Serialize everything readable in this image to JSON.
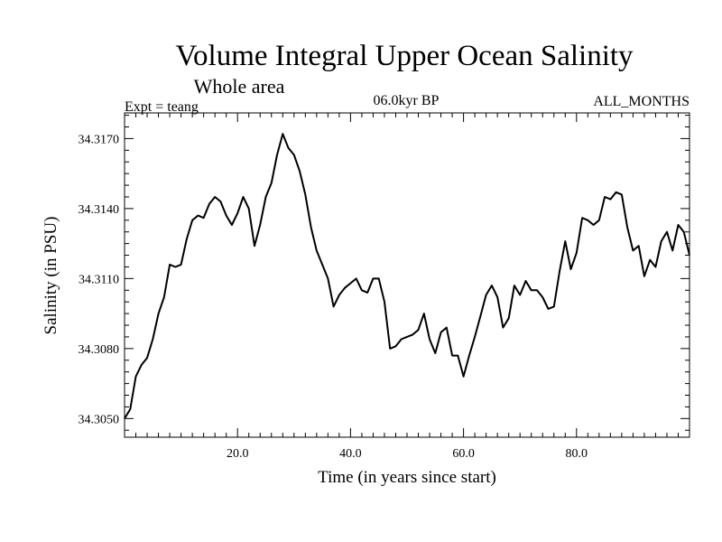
{
  "chart_data": {
    "type": "line",
    "title": "Volume Integral Upper Ocean Salinity",
    "subtitle": "Whole area",
    "header_left": "Expt = teang",
    "header_center": "06.0kyr BP",
    "header_right": "ALL_MONTHS",
    "xlabel": "Time (in years since start)",
    "ylabel": "Salinity (in PSU)",
    "xlim": [
      0,
      100
    ],
    "ylim": [
      34.3042,
      34.3181
    ],
    "xticks": [
      20,
      40,
      60,
      80
    ],
    "xtick_labels": [
      "20.0",
      "40.0",
      "60.0",
      "80.0"
    ],
    "yticks": [
      34.305,
      34.308,
      34.311,
      34.314,
      34.317
    ],
    "ytick_labels": [
      "34.3050",
      "34.3080",
      "34.3110",
      "34.3140",
      "34.3170"
    ],
    "series": [
      {
        "name": "Salinity",
        "x": [
          0,
          1,
          2,
          3,
          4,
          5,
          6,
          7,
          8,
          9,
          10,
          11,
          12,
          13,
          14,
          15,
          16,
          17,
          18,
          19,
          20,
          21,
          22,
          23,
          24,
          25,
          26,
          27,
          28,
          29,
          30,
          31,
          32,
          33,
          34,
          35,
          36,
          37,
          38,
          39,
          40,
          41,
          42,
          43,
          44,
          45,
          46,
          47,
          48,
          49,
          50,
          51,
          52,
          53,
          54,
          55,
          56,
          57,
          58,
          59,
          60,
          61,
          62,
          63,
          64,
          65,
          66,
          67,
          68,
          69,
          70,
          71,
          72,
          73,
          74,
          75,
          76,
          77,
          78,
          79,
          80,
          81,
          82,
          83,
          84,
          85,
          86,
          87,
          88,
          89,
          90,
          91,
          92,
          93,
          94,
          95,
          96,
          97,
          98,
          99,
          100
        ],
        "values": [
          34.305,
          34.3054,
          34.3068,
          34.3073,
          34.3076,
          34.3084,
          34.3095,
          34.3102,
          34.3116,
          34.3115,
          34.3116,
          34.3127,
          34.3135,
          34.3137,
          34.3136,
          34.3142,
          34.3145,
          34.3143,
          34.3137,
          34.3133,
          34.3138,
          34.3145,
          34.314,
          34.3124,
          34.3133,
          34.3145,
          34.3151,
          34.3163,
          34.3172,
          34.3166,
          34.3163,
          34.3156,
          34.3146,
          34.3132,
          34.3122,
          34.3116,
          34.311,
          34.3098,
          34.3103,
          34.3106,
          34.3108,
          34.311,
          34.3105,
          34.3104,
          34.311,
          34.311,
          34.31,
          34.308,
          34.3081,
          34.3084,
          34.3085,
          34.3086,
          34.3088,
          34.3095,
          34.3084,
          34.3078,
          34.3087,
          34.3089,
          34.3077,
          34.3077,
          34.3068,
          34.3077,
          34.3085,
          34.3094,
          34.3103,
          34.3107,
          34.3102,
          34.3089,
          34.3093,
          34.3107,
          34.3103,
          34.3109,
          34.3105,
          34.3105,
          34.3102,
          34.3097,
          34.3098,
          34.3113,
          34.3126,
          34.3114,
          34.3121,
          34.3136,
          34.3135,
          34.3133,
          34.3135,
          34.3145,
          34.3144,
          34.3147,
          34.3146,
          34.3132,
          34.3122,
          34.3124,
          34.3111,
          34.3118,
          34.3115,
          34.3126,
          34.313,
          34.3122,
          34.3133,
          34.313,
          34.312
        ]
      }
    ]
  }
}
